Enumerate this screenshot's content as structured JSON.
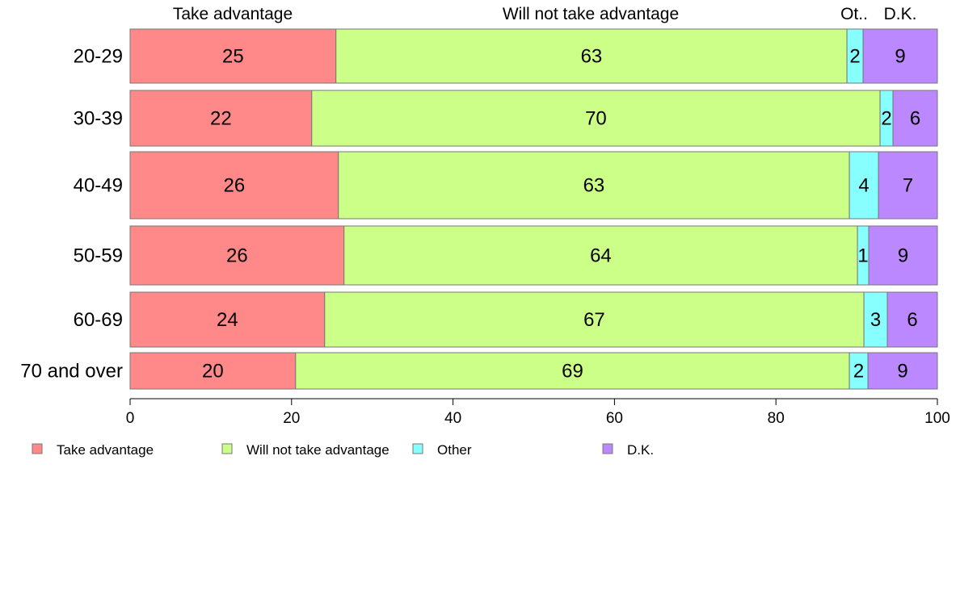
{
  "colors": {
    "take_advantage": "#ff8888",
    "will_not": "#ccff88",
    "other": "#88ffff",
    "dk": "#bb88ff",
    "segment_stroke": "#777777",
    "axis": "#000000"
  },
  "column_headers": [
    "Take advantage",
    "Will not take advantage",
    "Ot..",
    "D.K."
  ],
  "legend": {
    "items": [
      {
        "label": "Take advantage",
        "color": "#ff8888"
      },
      {
        "label": "Will not take advantage",
        "color": "#ccff88"
      },
      {
        "label": "Other",
        "color": "#88ffff"
      },
      {
        "label": "D.K."
      }
    ]
  },
  "chart_data": {
    "type": "bar",
    "orientation": "horizontal",
    "stacked": true,
    "categories": [
      "20-29",
      "30-39",
      "40-49",
      "50-59",
      "60-69",
      "70 and over"
    ],
    "series": [
      {
        "name": "Take advantage",
        "values": [
          25,
          22,
          26,
          26,
          24,
          20
        ],
        "exact_values": [
          25.5,
          22.5,
          25.8,
          26.5,
          24.1,
          20.5
        ]
      },
      {
        "name": "Will not take advantage",
        "values": [
          63,
          70,
          63,
          64,
          67,
          69
        ],
        "exact_values": [
          63.3,
          70.4,
          63.3,
          63.6,
          66.8,
          68.6
        ]
      },
      {
        "name": "Other",
        "values": [
          2,
          2,
          4,
          1,
          3,
          2
        ],
        "exact_values": [
          2.0,
          1.6,
          3.6,
          1.4,
          2.9,
          2.3
        ]
      },
      {
        "name": "D.K.",
        "values": [
          9,
          6,
          7,
          9,
          6,
          9
        ],
        "exact_values": [
          9.2,
          5.5,
          7.3,
          8.5,
          6.2,
          8.6
        ]
      }
    ],
    "xlim": [
      0,
      100
    ],
    "xticks": [
      0,
      20,
      40,
      60,
      80,
      100
    ],
    "xlabel": "",
    "ylabel": "",
    "title": "",
    "grid": false,
    "legend_position": "bottom-left"
  }
}
